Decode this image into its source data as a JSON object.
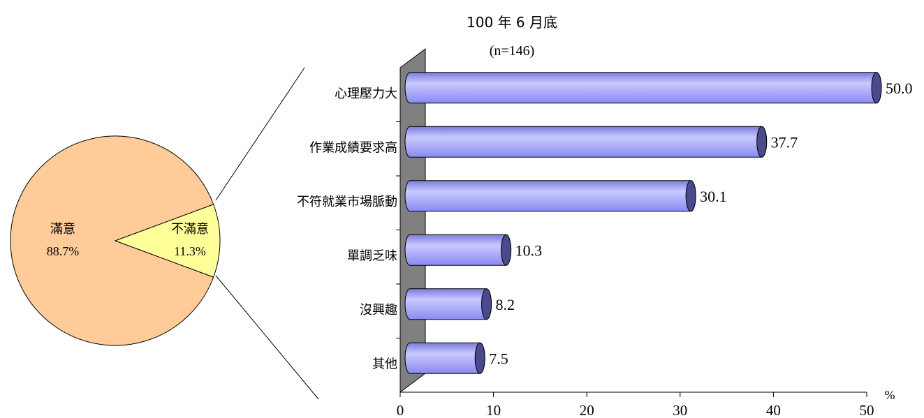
{
  "header": {
    "line1": "100 年 6 月底",
    "line2": "(n=146)"
  },
  "chart_data": [
    {
      "type": "pie",
      "slices": [
        {
          "label": "滿意",
          "value": 88.7,
          "display": "88.7%",
          "color": "#FFCC99"
        },
        {
          "label": "不滿意",
          "value": 11.3,
          "display": "11.3%",
          "color": "#FFFF99"
        }
      ]
    },
    {
      "type": "bar",
      "orientation": "horizontal",
      "categories": [
        "心理壓力大",
        "作業成績要求高",
        "不符就業市場脈動",
        "單調乏味",
        "沒興趣",
        "其他"
      ],
      "values": [
        50.0,
        37.7,
        30.1,
        10.3,
        8.2,
        7.5
      ],
      "value_labels": [
        "50.0",
        "37.7",
        "30.1",
        "10.3",
        "8.2",
        "7.5"
      ],
      "xlim": [
        0,
        50
      ],
      "x_ticks": [
        "0",
        "10",
        "20",
        "30",
        "40",
        "50"
      ],
      "x_unit": "%",
      "bar_color": "#9999FF",
      "bar_cap_color": "#4A4A8C",
      "wall_color": "#808080",
      "grid": false
    }
  ]
}
